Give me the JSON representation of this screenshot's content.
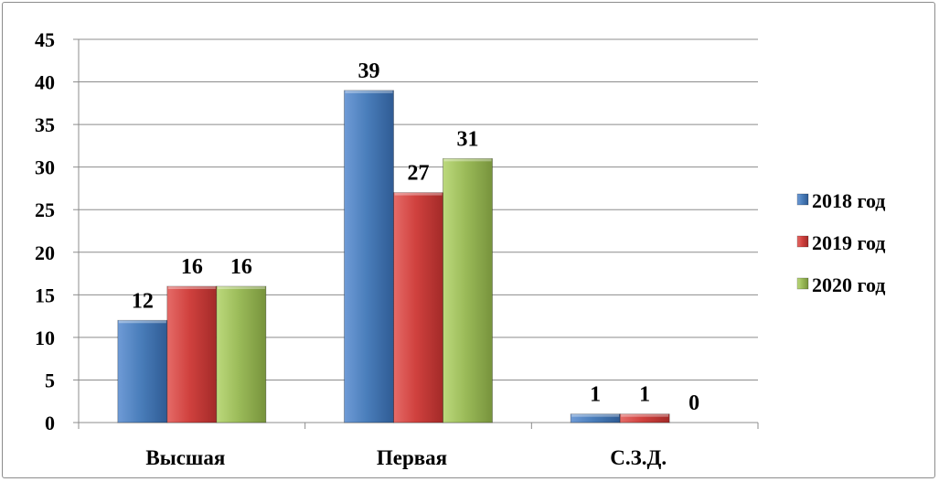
{
  "chart_data": {
    "type": "bar",
    "categories": [
      "Высшая",
      "Первая",
      "С.З.Д."
    ],
    "series": [
      {
        "name": "2018 год",
        "values": [
          12,
          39,
          1
        ],
        "color": "#4a7ebb"
      },
      {
        "name": "2019 год",
        "values": [
          16,
          27,
          1
        ],
        "color": "#d0413e"
      },
      {
        "name": "2020 год",
        "values": [
          16,
          31,
          0
        ],
        "color": "#9bbb59"
      }
    ],
    "ylim": [
      0,
      45
    ],
    "yticks": [
      "0",
      "5",
      "10",
      "15",
      "20",
      "25",
      "30",
      "35",
      "40",
      "45"
    ],
    "grid": true,
    "legend_position": "right",
    "title": "",
    "xlabel": "",
    "ylabel": ""
  }
}
